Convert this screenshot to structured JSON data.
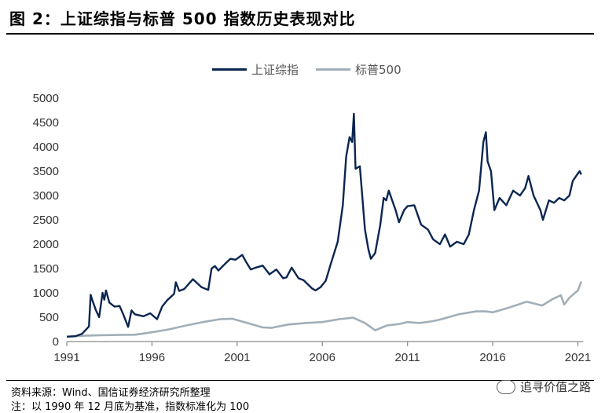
{
  "title": "图  2：上证综指与标普 500 指数历史表现对比",
  "footer": {
    "source": "资料来源：Wind、国信证券经济研究所整理",
    "note": "注：以 1990 年 12 月底为基准，指数标准化为 100"
  },
  "watermark": "追寻价值之路",
  "watermark_icon": "wechat-icon",
  "chart_data": {
    "type": "line",
    "title": "",
    "xlabel": "",
    "ylabel": "",
    "xlim": [
      1991,
      2021.3
    ],
    "ylim": [
      0,
      5000
    ],
    "y_ticks": [
      "0",
      "500",
      "1000",
      "1500",
      "2000",
      "2500",
      "3000",
      "3500",
      "4000",
      "4500",
      "5000"
    ],
    "x_ticks": [
      "1991",
      "1996",
      "2001",
      "2006",
      "2011",
      "2016",
      "2021"
    ],
    "grid": false,
    "legend": "top-center",
    "series": [
      {
        "name": "上证综指",
        "color": "#0b2650",
        "x": [
          1991.0,
          1991.5,
          1991.9,
          1992.3,
          1992.4,
          1992.5,
          1992.7,
          1992.9,
          1993.1,
          1993.2,
          1993.3,
          1993.5,
          1993.8,
          1994.1,
          1994.3,
          1994.6,
          1994.8,
          1995.0,
          1995.5,
          1995.9,
          1996.3,
          1996.6,
          1996.9,
          1997.3,
          1997.4,
          1997.6,
          1997.9,
          1998.4,
          1998.9,
          1999.3,
          1999.5,
          1999.7,
          1999.9,
          2000.3,
          2000.6,
          2000.9,
          2001.3,
          2001.5,
          2001.8,
          2002.1,
          2002.5,
          2002.9,
          2003.3,
          2003.7,
          2003.9,
          2004.2,
          2004.6,
          2004.9,
          2005.4,
          2005.6,
          2005.9,
          2006.2,
          2006.5,
          2006.9,
          2007.2,
          2007.4,
          2007.6,
          2007.75,
          2007.85,
          2007.95,
          2008.2,
          2008.5,
          2008.7,
          2008.85,
          2009.1,
          2009.4,
          2009.6,
          2009.75,
          2009.9,
          2010.3,
          2010.5,
          2010.8,
          2011.0,
          2011.4,
          2011.8,
          2012.2,
          2012.5,
          2012.9,
          2013.2,
          2013.5,
          2013.9,
          2014.3,
          2014.6,
          2014.9,
          2015.2,
          2015.45,
          2015.6,
          2015.7,
          2015.9,
          2016.1,
          2016.4,
          2016.8,
          2017.2,
          2017.6,
          2017.9,
          2018.1,
          2018.4,
          2018.8,
          2018.95,
          2019.3,
          2019.6,
          2019.9,
          2020.2,
          2020.5,
          2020.7,
          2020.9,
          2021.1,
          2021.2
        ],
        "y": [
          100,
          110,
          160,
          310,
          960,
          850,
          650,
          500,
          1000,
          860,
          1050,
          800,
          720,
          730,
          570,
          300,
          640,
          560,
          520,
          580,
          460,
          720,
          850,
          980,
          1220,
          1040,
          1080,
          1280,
          1120,
          1060,
          1500,
          1550,
          1460,
          1600,
          1700,
          1680,
          1780,
          1650,
          1480,
          1520,
          1560,
          1380,
          1480,
          1300,
          1320,
          1520,
          1300,
          1260,
          1090,
          1050,
          1120,
          1250,
          1600,
          2050,
          2800,
          3800,
          4200,
          4100,
          4680,
          3550,
          3600,
          2300,
          1900,
          1700,
          1820,
          2400,
          2950,
          2900,
          3100,
          2700,
          2450,
          2700,
          2780,
          2800,
          2400,
          2300,
          2100,
          2000,
          2200,
          1950,
          2050,
          2000,
          2200,
          2700,
          3100,
          4100,
          4300,
          3700,
          3500,
          2700,
          2950,
          2800,
          3100,
          3000,
          3150,
          3400,
          3000,
          2700,
          2500,
          2900,
          2850,
          2950,
          2900,
          3000,
          3300,
          3400,
          3500,
          3430
        ]
      },
      {
        "name": "标普500",
        "color": "#a2aeb8",
        "x": [
          1991.0,
          1992.0,
          1993.0,
          1994.0,
          1995.0,
          1996.0,
          1997.0,
          1998.0,
          1999.0,
          2000.0,
          2000.7,
          2001.5,
          2002.5,
          2003.0,
          2004.0,
          2005.0,
          2006.0,
          2007.0,
          2007.8,
          2008.5,
          2009.1,
          2009.8,
          2010.5,
          2011.0,
          2011.7,
          2012.5,
          2013.0,
          2014.0,
          2015.0,
          2015.6,
          2016.0,
          2016.8,
          2017.5,
          2018.0,
          2018.9,
          2019.5,
          2020.0,
          2020.2,
          2020.5,
          2021.0,
          2021.2
        ],
        "y": [
          100,
          120,
          130,
          135,
          140,
          190,
          250,
          330,
          400,
          460,
          470,
          390,
          290,
          280,
          350,
          380,
          400,
          460,
          490,
          380,
          230,
          330,
          360,
          400,
          380,
          420,
          460,
          560,
          620,
          620,
          600,
          680,
          760,
          820,
          740,
          870,
          950,
          760,
          900,
          1050,
          1230
        ]
      }
    ]
  }
}
